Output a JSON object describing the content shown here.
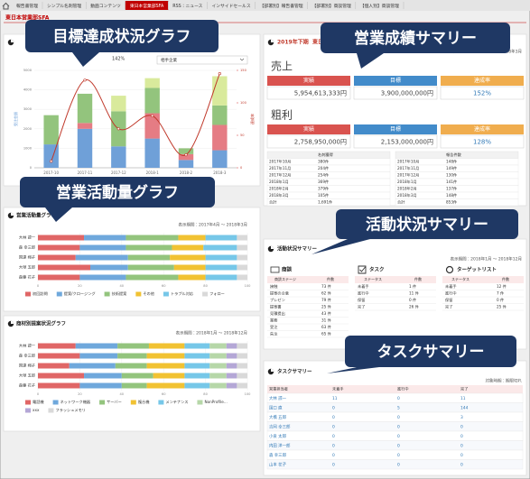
{
  "nav": {
    "tabs": [
      "報告書管理",
      "シンプル名刺管理",
      "動画コンテンツ",
      "東日本営業部SFA",
      "RSS：ニュース",
      "インサイドセールス",
      "【部署別】報告書管理",
      "【部署別】商談管理",
      "【個人別】商談管理"
    ]
  },
  "page_title": "東日本営業部SFA",
  "callouts": [
    "目標達成状況グラフ",
    "営業成績サマリー",
    "営業活動量グラフ",
    "活動状況サマリー",
    "タスクサマリー"
  ],
  "chart_data": [
    {
      "type": "bar-line",
      "rate_label": "142%",
      "filter": "相手企業",
      "ylabel": "受注金額",
      "y2label": "達成率",
      "categories": [
        "2017-10",
        "2017-11",
        "2017-12",
        "2018-1",
        "2018-2",
        "2018-3"
      ],
      "ylim": [
        0,
        5000
      ],
      "yticks": [
        0,
        1000,
        2000,
        3000,
        4000,
        5000
      ],
      "y2lim": [
        0,
        150
      ],
      "y2ticks": [
        0,
        50,
        100,
        150
      ],
      "series": [
        {
          "color": "#6fa0d8",
          "values": [
            1200,
            2000,
            1100,
            1500,
            400,
            900
          ]
        },
        {
          "color": "#e57c84",
          "values": [
            0,
            300,
            0,
            1300,
            300,
            1300
          ]
        },
        {
          "color": "#93c47d",
          "values": [
            1500,
            1500,
            1800,
            1300,
            300,
            1000
          ]
        },
        {
          "color": "#d9ea9c",
          "values": [
            0,
            0,
            800,
            500,
            0,
            1500
          ]
        },
        {
          "color": "#c0392b",
          "axis": "y2",
          "values": [
            10,
            135,
            60,
            80,
            20,
            145
          ]
        }
      ]
    },
    {
      "type": "hbar-stacked",
      "title": "営業活動量グラフ",
      "period": "表示期間：2017年4月 ～ 2018年3月",
      "categories": [
        "大林 諒一",
        "森 幸三郎",
        "国達 翔子",
        "大塚 五郎",
        "森藤 花子"
      ],
      "xlim": [
        0,
        100
      ],
      "xticks": [
        0,
        20,
        40,
        60,
        80,
        100
      ],
      "series": [
        {
          "name": "初回訪問",
          "color": "#e06666",
          "values": [
            22,
            20,
            18,
            25,
            20
          ]
        },
        {
          "name": "提案/クロージング",
          "color": "#6fa8dc",
          "values": [
            20,
            22,
            25,
            18,
            22
          ]
        },
        {
          "name": "技術提案",
          "color": "#93c47d",
          "values": [
            25,
            22,
            20,
            22,
            25
          ]
        },
        {
          "name": "その他",
          "color": "#f1c232",
          "values": [
            13,
            15,
            17,
            15,
            13
          ]
        },
        {
          "name": "トラブル対応",
          "color": "#76c7e8",
          "values": [
            15,
            16,
            15,
            15,
            15
          ]
        },
        {
          "name": "フォロー",
          "color": "#d9d9d9",
          "values": [
            5,
            5,
            5,
            5,
            5
          ]
        }
      ]
    },
    {
      "type": "hbar-stacked",
      "title": "商材別提案状況グラフ",
      "period": "表示期間：2018年1月 ～ 2018年12月",
      "categories": [
        "大林 諒一",
        "森 幸三郎",
        "国達 翔子",
        "大塚 五郎",
        "森藤 花子"
      ],
      "xlim": [
        0,
        100
      ],
      "xticks": [
        0,
        20,
        40,
        60,
        80,
        100
      ],
      "series": [
        {
          "name": "電話機",
          "color": "#e06666",
          "values": [
            18,
            20,
            15,
            22,
            20
          ]
        },
        {
          "name": "ネットワーク機器",
          "color": "#6fa8dc",
          "values": [
            20,
            18,
            22,
            18,
            20
          ]
        },
        {
          "name": "サーバー",
          "color": "#93c47d",
          "values": [
            15,
            14,
            15,
            15,
            12
          ]
        },
        {
          "name": "複合機",
          "color": "#f1c232",
          "values": [
            17,
            18,
            18,
            15,
            18
          ]
        },
        {
          "name": "メンテナンス",
          "color": "#76c7e8",
          "values": [
            12,
            12,
            12,
            12,
            12
          ]
        },
        {
          "name": "NonProfile...",
          "color": "#b6d7a8",
          "values": [
            8,
            8,
            8,
            8,
            8
          ]
        },
        {
          "name": "xxx",
          "color": "#b4a7d6",
          "values": [
            5,
            5,
            5,
            5,
            5
          ]
        },
        {
          "name": "フラッシュメモリ",
          "color": "#d9d9d9",
          "values": [
            5,
            5,
            5,
            5,
            5
          ]
        }
      ]
    }
  ],
  "summary": {
    "period_label": "2019年下期",
    "org": "東日本営業部",
    "period": "表示期間：2017年4月 ～ 2018年3月",
    "headers": [
      "実績",
      "目標",
      "達成率"
    ],
    "blocks": [
      {
        "label": "売上",
        "values": [
          "5,954,613,333円",
          "3,900,000,000円",
          "152%"
        ]
      },
      {
        "label": "粗利",
        "values": [
          "2,758,950,000円",
          "2,153,000,000円",
          "128%"
        ]
      }
    ],
    "tables": [
      {
        "header": "名刺獲得",
        "rows": [
          [
            "2017年10月",
            "380件"
          ],
          [
            "2017年11月",
            "204件"
          ],
          [
            "2017年12月",
            "254件"
          ],
          [
            "2018年1月",
            "369件"
          ],
          [
            "2018年2月",
            "379件"
          ],
          [
            "2018年3月",
            "105件"
          ],
          [
            "合計",
            "1,691件"
          ]
        ]
      },
      {
        "header": "報告件数",
        "rows": [
          [
            "2017年10月",
            "148件"
          ],
          [
            "2017年11月",
            "149件"
          ],
          [
            "2017年12月",
            "130件"
          ],
          [
            "2018年1月",
            "141件"
          ],
          [
            "2018年2月",
            "137件"
          ],
          [
            "2018年3月",
            "148件"
          ],
          [
            "合計",
            "853件"
          ]
        ]
      }
    ]
  },
  "activity": {
    "title": "活動状況サマリー",
    "period": "表示期間：2018年1月 ～ 2018年12月",
    "groups": [
      {
        "title": "商談",
        "columns": [
          "商談ステージ",
          "件数"
        ],
        "rows": [
          [
            "接触",
            "73 件"
          ],
          [
            "提案の合意",
            "62 件"
          ],
          [
            "プレゼン",
            "79 件"
          ],
          [
            "提案書",
            "25 件"
          ],
          [
            "見積提出",
            "43 件"
          ],
          [
            "業務",
            "31 件"
          ],
          [
            "受注",
            "63 件"
          ],
          [
            "失注",
            "65 件"
          ]
        ]
      },
      {
        "title": "タスク",
        "columns": [
          "ステータス",
          "件数"
        ],
        "rows": [
          [
            "未着手",
            "1 件"
          ],
          [
            "進行中",
            "11 件"
          ],
          [
            "保留",
            "0 件"
          ],
          [
            "完了",
            "26 件"
          ]
        ]
      },
      {
        "title": "ターゲットリスト",
        "columns": [
          "ステータス",
          "件数"
        ],
        "rows": [
          [
            "未着手",
            "12 件"
          ],
          [
            "進行中",
            "7 件"
          ],
          [
            "保留",
            "0 件"
          ],
          [
            "完了",
            "25 件"
          ]
        ]
      }
    ]
  },
  "tasks": {
    "title": "タスクサマリー",
    "condition": "対象時期：期限切れ",
    "columns": [
      "営業担当者",
      "未着手",
      "進行中",
      "完了"
    ],
    "rows": [
      [
        "大林 諒一",
        11,
        0,
        11
      ],
      [
        "国口 直",
        0,
        5,
        144
      ],
      [
        "大橋 五郎",
        0,
        0,
        3
      ],
      [
        "吉岡 幸三郎",
        0,
        0,
        0
      ],
      [
        "小泉 太郎",
        0,
        0,
        0
      ],
      [
        "内田 洋一郎",
        0,
        0,
        0
      ],
      [
        "森 幸三郎",
        0,
        0,
        0
      ],
      [
        "山本 花子",
        0,
        0,
        0
      ]
    ]
  }
}
